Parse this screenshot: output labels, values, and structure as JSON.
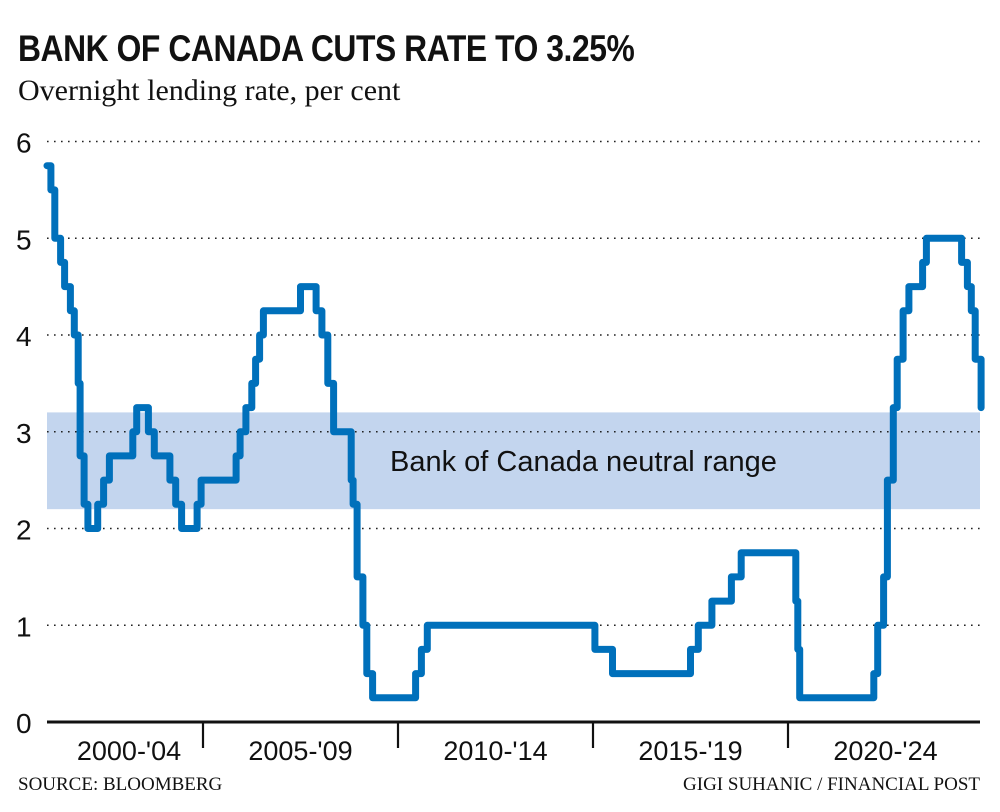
{
  "header": {
    "title": "BANK OF CANADA CUTS RATE TO 3.25%",
    "subtitle": "Overnight lending rate, per cent"
  },
  "footer": {
    "source": "SOURCE: BLOOMBERG",
    "credit": "GIGI SUHANIC / FINANCIAL POST"
  },
  "colors": {
    "line": "#0070BB",
    "band": "#C3D5EE",
    "grid": "#222222",
    "axis": "#111111"
  },
  "chart_data": {
    "type": "line",
    "step": true,
    "title": "BANK OF CANADA CUTS RATE TO 3.25%",
    "subtitle": "Overnight lending rate, per cent",
    "xlabel": "",
    "ylabel": "",
    "ylim": [
      0,
      6
    ],
    "xlim": [
      2000,
      2025
    ],
    "yticks": [
      0,
      1,
      2,
      3,
      4,
      5,
      6
    ],
    "ytick_labels": [
      "0",
      "1",
      "2",
      "3",
      "4",
      "5",
      "6"
    ],
    "x_category_labels": [
      {
        "label": "2000-'04",
        "from": 2000,
        "to": 2005
      },
      {
        "label": "2005-'09",
        "from": 2005,
        "to": 2010
      },
      {
        "label": "2010-'14",
        "from": 2010,
        "to": 2015
      },
      {
        "label": "2015-'19",
        "from": 2015,
        "to": 2020
      },
      {
        "label": "2020-'24",
        "from": 2020,
        "to": 2025
      }
    ],
    "x_separators": [
      2005,
      2010,
      2015,
      2020
    ],
    "grid": "horizontal-dotted",
    "annotation": {
      "label": "Bank of Canada neutral range",
      "range": [
        2.2,
        3.2
      ]
    },
    "series": [
      {
        "name": "Overnight lending rate",
        "points": [
          [
            2001.0,
            5.75
          ],
          [
            2001.1,
            5.5
          ],
          [
            2001.2,
            5.0
          ],
          [
            2001.35,
            4.75
          ],
          [
            2001.45,
            4.5
          ],
          [
            2001.6,
            4.25
          ],
          [
            2001.7,
            4.0
          ],
          [
            2001.8,
            3.5
          ],
          [
            2001.85,
            2.75
          ],
          [
            2001.95,
            2.25
          ],
          [
            2002.05,
            2.0
          ],
          [
            2002.3,
            2.25
          ],
          [
            2002.45,
            2.5
          ],
          [
            2002.6,
            2.75
          ],
          [
            2003.2,
            3.0
          ],
          [
            2003.3,
            3.25
          ],
          [
            2003.6,
            3.0
          ],
          [
            2003.75,
            2.75
          ],
          [
            2004.15,
            2.5
          ],
          [
            2004.3,
            2.25
          ],
          [
            2004.45,
            2.0
          ],
          [
            2004.85,
            2.25
          ],
          [
            2004.95,
            2.5
          ],
          [
            2005.85,
            2.75
          ],
          [
            2005.95,
            3.0
          ],
          [
            2006.1,
            3.25
          ],
          [
            2006.25,
            3.5
          ],
          [
            2006.35,
            3.75
          ],
          [
            2006.45,
            4.0
          ],
          [
            2006.55,
            4.25
          ],
          [
            2007.5,
            4.5
          ],
          [
            2007.9,
            4.25
          ],
          [
            2008.05,
            4.0
          ],
          [
            2008.2,
            3.5
          ],
          [
            2008.35,
            3.0
          ],
          [
            2008.8,
            2.5
          ],
          [
            2008.85,
            2.25
          ],
          [
            2008.95,
            1.5
          ],
          [
            2009.1,
            1.0
          ],
          [
            2009.2,
            0.5
          ],
          [
            2009.35,
            0.25
          ],
          [
            2010.45,
            0.5
          ],
          [
            2010.6,
            0.75
          ],
          [
            2010.75,
            1.0
          ],
          [
            2015.05,
            0.75
          ],
          [
            2015.5,
            0.5
          ],
          [
            2017.5,
            0.75
          ],
          [
            2017.7,
            1.0
          ],
          [
            2018.05,
            1.25
          ],
          [
            2018.55,
            1.5
          ],
          [
            2018.8,
            1.75
          ],
          [
            2020.2,
            1.25
          ],
          [
            2020.25,
            0.75
          ],
          [
            2020.3,
            0.25
          ],
          [
            2022.2,
            0.5
          ],
          [
            2022.3,
            1.0
          ],
          [
            2022.45,
            1.5
          ],
          [
            2022.55,
            2.5
          ],
          [
            2022.7,
            3.25
          ],
          [
            2022.8,
            3.75
          ],
          [
            2022.95,
            4.25
          ],
          [
            2023.1,
            4.5
          ],
          [
            2023.45,
            4.75
          ],
          [
            2023.55,
            5.0
          ],
          [
            2024.45,
            4.75
          ],
          [
            2024.6,
            4.5
          ],
          [
            2024.7,
            4.25
          ],
          [
            2024.8,
            3.75
          ],
          [
            2024.95,
            3.25
          ]
        ]
      }
    ]
  }
}
